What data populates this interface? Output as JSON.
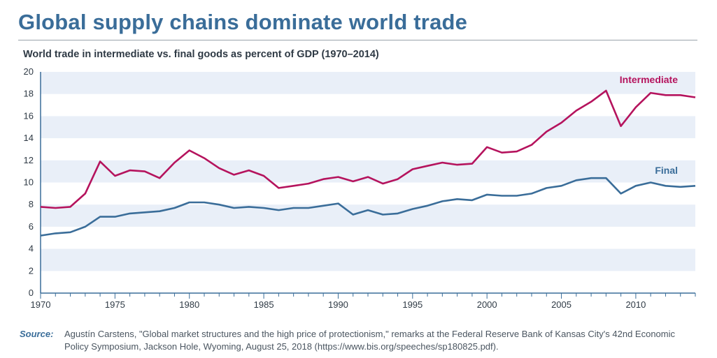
{
  "title": "Global supply chains dominate world trade",
  "chart_data": {
    "type": "line",
    "title": "World trade in intermediate vs. final goods as percent of GDP (1970–2014)",
    "xlabel": "",
    "ylabel": "",
    "xlim": [
      1970,
      2014
    ],
    "ylim": [
      0,
      20
    ],
    "yticks": [
      0,
      2,
      4,
      6,
      8,
      10,
      12,
      14,
      16,
      18,
      20
    ],
    "xticks": [
      1970,
      1975,
      1980,
      1985,
      1990,
      1995,
      2000,
      2005,
      2010
    ],
    "x": [
      1970,
      1971,
      1972,
      1973,
      1974,
      1975,
      1976,
      1977,
      1978,
      1979,
      1980,
      1981,
      1982,
      1983,
      1984,
      1985,
      1986,
      1987,
      1988,
      1989,
      1990,
      1991,
      1992,
      1993,
      1994,
      1995,
      1996,
      1997,
      1998,
      1999,
      2000,
      2001,
      2002,
      2003,
      2004,
      2005,
      2006,
      2007,
      2008,
      2009,
      2010,
      2011,
      2012,
      2013,
      2014
    ],
    "series": [
      {
        "name": "Intermediate",
        "color": "#b5135d",
        "values": [
          7.8,
          7.7,
          7.8,
          9.0,
          11.9,
          10.6,
          11.1,
          11.0,
          10.4,
          11.8,
          12.9,
          12.2,
          11.3,
          10.7,
          11.1,
          10.6,
          9.5,
          9.7,
          9.9,
          10.3,
          10.5,
          10.1,
          10.5,
          9.9,
          10.3,
          11.2,
          11.5,
          11.8,
          11.6,
          11.7,
          13.2,
          12.7,
          12.8,
          13.4,
          14.6,
          15.4,
          16.5,
          17.3,
          18.3,
          15.1,
          16.8,
          18.1,
          17.9,
          17.9,
          17.7
        ]
      },
      {
        "name": "Final",
        "color": "#3a6d99",
        "values": [
          5.2,
          5.4,
          5.5,
          6.0,
          6.9,
          6.9,
          7.2,
          7.3,
          7.4,
          7.7,
          8.2,
          8.2,
          8.0,
          7.7,
          7.8,
          7.7,
          7.5,
          7.7,
          7.7,
          7.9,
          8.1,
          7.1,
          7.5,
          7.1,
          7.2,
          7.6,
          7.9,
          8.3,
          8.5,
          8.4,
          8.9,
          8.8,
          8.8,
          9.0,
          9.5,
          9.7,
          10.2,
          10.4,
          10.4,
          9.0,
          9.7,
          10.0,
          9.7,
          9.6,
          9.7
        ]
      }
    ],
    "grid": "horizontal bands",
    "legend": "inline labels"
  },
  "source": {
    "label": "Source:",
    "text": "Agustín Carstens, \"Global market structures and the high price of protectionism,\" remarks at the Federal Reserve Bank of Kansas City's 42nd Economic Policy Symposium, Jackson Hole, Wyoming, August 25, 2018 (https://www.bis.org/speeches/sp180825.pdf)."
  },
  "colors": {
    "title": "#3a6d99",
    "band": "#e9eff8",
    "axis": "#3a6d99"
  }
}
